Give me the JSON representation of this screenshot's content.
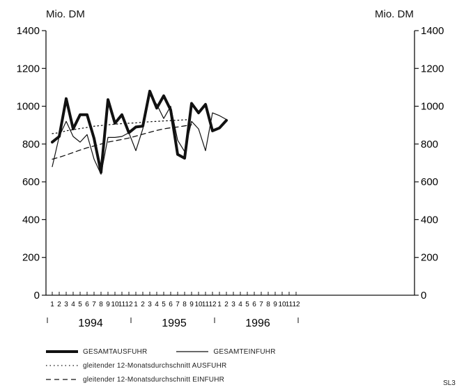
{
  "units": {
    "left": "Mio. DM",
    "right": "Mio. DM"
  },
  "source_tag": "SL3",
  "chart_data": {
    "type": "line",
    "title": "",
    "xlabel": "",
    "ylabel": "Mio. DM",
    "ylim": [
      0,
      1400
    ],
    "yticks": [
      0,
      200,
      400,
      600,
      800,
      1000,
      1200,
      1400
    ],
    "grid": false,
    "legend_position": "bottom",
    "months": [
      "1",
      "2",
      "3",
      "4",
      "5",
      "6",
      "7",
      "8",
      "9",
      "10",
      "11",
      "12"
    ],
    "years": [
      "1994",
      "1995",
      "1996"
    ],
    "series": [
      {
        "name": "GESAMTAUSFUHR",
        "style": "thick",
        "start_index": 0,
        "values": [
          810,
          840,
          1040,
          880,
          955,
          955,
          830,
          650,
          1035,
          910,
          955,
          860,
          890,
          895,
          1080,
          990,
          1055,
          980,
          745,
          725,
          1015,
          965,
          1010,
          870,
          885,
          925
        ]
      },
      {
        "name": "GESAMTEINFUHR",
        "style": "thin",
        "start_index": 0,
        "values": [
          680,
          840,
          920,
          840,
          810,
          850,
          720,
          640,
          835,
          835,
          840,
          860,
          765,
          880,
          1060,
          1010,
          935,
          1000,
          820,
          760,
          920,
          880,
          765,
          965,
          950,
          930
        ]
      },
      {
        "name": "gleitender 12-Monatsdurchschnitt AUSFUHR",
        "style": "dotted",
        "start_index": 0,
        "values": [
          855,
          860,
          870,
          876,
          882,
          888,
          894,
          898,
          902,
          905,
          908,
          910,
          912,
          915,
          918,
          920,
          922,
          924,
          926,
          928,
          930
        ]
      },
      {
        "name": "gleitender 12-Monatsdurchschnitt EINFUHR",
        "style": "dashed",
        "start_index": 0,
        "values": [
          720,
          730,
          742,
          755,
          768,
          780,
          790,
          800,
          810,
          817,
          824,
          832,
          842,
          852,
          862,
          872,
          880,
          886,
          890,
          896,
          902
        ]
      }
    ]
  }
}
